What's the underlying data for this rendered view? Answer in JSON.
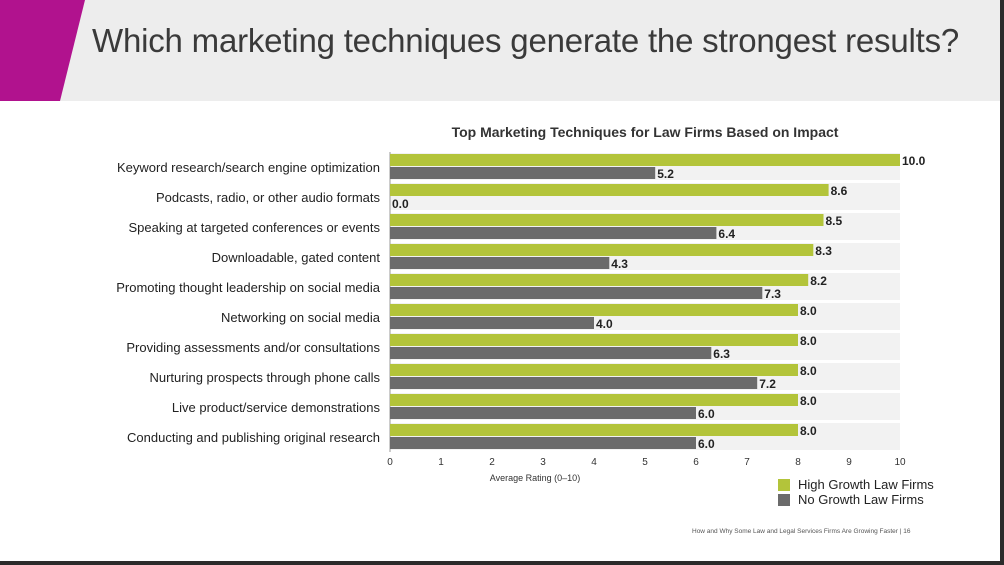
{
  "slide": {
    "title": "Which marketing techniques generate the strongest results?",
    "footer": "How and Why Some Law and Legal Services Firms Are Growing Faster  |  16"
  },
  "colors": {
    "accent": "#b1128e",
    "high_growth": "#b3c43a",
    "no_growth": "#6b6b6b",
    "header_band": "#ededed"
  },
  "chart_data": {
    "type": "bar",
    "orientation": "horizontal",
    "title": "Top Marketing Techniques for Law Firms Based on Impact",
    "xlabel": "Average Rating (0–10)",
    "ylabel": "",
    "xlim": [
      0,
      10
    ],
    "xticks": [
      "0",
      "1",
      "2",
      "3",
      "4",
      "5",
      "6",
      "7",
      "8",
      "9",
      "10"
    ],
    "categories": [
      "Keyword research/search engine optimization",
      "Podcasts, radio, or other audio formats",
      "Speaking at targeted conferences or events",
      "Downloadable, gated content",
      "Promoting thought leadership on social media",
      "Networking on social media",
      "Providing assessments and/or consultations",
      "Nurturing prospects through phone calls",
      "Live product/service demonstrations",
      "Conducting and publishing original research"
    ],
    "series": [
      {
        "name": "High Growth Law Firms",
        "values": [
          10.0,
          8.6,
          8.5,
          8.3,
          8.2,
          8.0,
          8.0,
          8.0,
          8.0,
          8.0
        ],
        "labels": [
          "10.0",
          "8.6",
          "8.5",
          "8.3",
          "8.2",
          "8.0",
          "8.0",
          "8.0",
          "8.0",
          "8.0"
        ]
      },
      {
        "name": "No Growth Law Firms",
        "values": [
          5.2,
          0.0,
          6.4,
          4.3,
          7.3,
          4.0,
          6.3,
          7.2,
          6.0,
          6.0
        ],
        "labels": [
          "5.2",
          "0.0",
          "6.4",
          "4.3",
          "7.3",
          "4.0",
          "6.3",
          "7.2",
          "6.0",
          "6.0"
        ]
      }
    ],
    "legend_position": "bottom-right",
    "grid": false
  }
}
